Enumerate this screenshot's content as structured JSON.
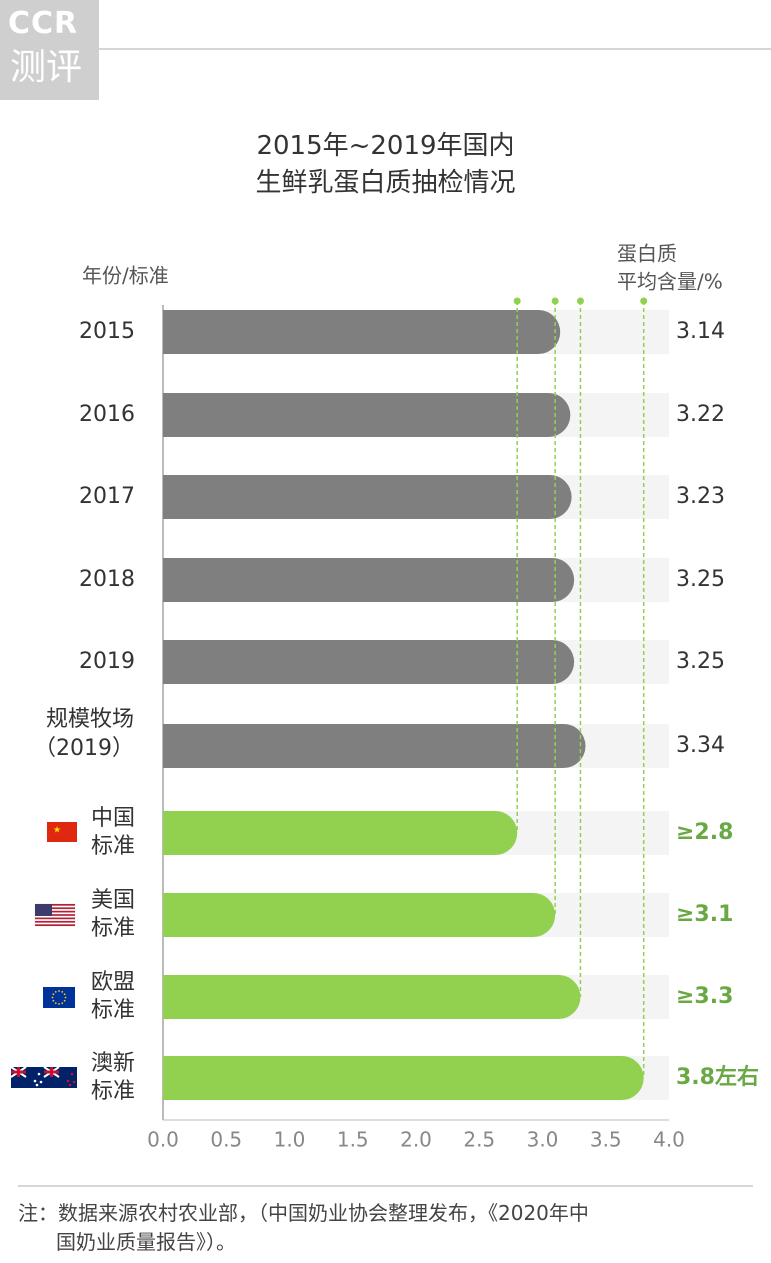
{
  "logo": {
    "line1": "CCR",
    "line2": "测评"
  },
  "title": {
    "line1": "2015年~2019年国内",
    "line2": "生鲜乳蛋白质抽检情况"
  },
  "footnote": {
    "line1": "注：数据来源农村农业部，（中国奶业协会整理发布，《2020年中",
    "line2": "国奶业质量报告》）。"
  },
  "colors": {
    "measured_bar": "#7f7f7f",
    "standard_bar": "#92d050",
    "standard_label": "#6aa843",
    "track": "#f4f4f4",
    "guide": "#92d050"
  },
  "chart_data": {
    "type": "bar",
    "orientation": "horizontal",
    "title": "2015年~2019年国内生鲜乳蛋白质抽检情况",
    "ylabel": "年份/标准",
    "value_label_lines": [
      "蛋白质",
      "平均含量/%"
    ],
    "xlim": [
      0,
      4.0
    ],
    "xticks": [
      "0.0",
      "0.5",
      "1.0",
      "1.5",
      "2.0",
      "2.5",
      "3.0",
      "3.5",
      "4.0"
    ],
    "categories": [
      {
        "label_lines": [
          "2015"
        ],
        "value": 3.14,
        "value_label": "3.14",
        "group": "measured"
      },
      {
        "label_lines": [
          "2016"
        ],
        "value": 3.22,
        "value_label": "3.22",
        "group": "measured"
      },
      {
        "label_lines": [
          "2017"
        ],
        "value": 3.23,
        "value_label": "3.23",
        "group": "measured"
      },
      {
        "label_lines": [
          "2018"
        ],
        "value": 3.25,
        "value_label": "3.25",
        "group": "measured"
      },
      {
        "label_lines": [
          "2019"
        ],
        "value": 3.25,
        "value_label": "3.25",
        "group": "measured"
      },
      {
        "label_lines": [
          "规模牧场",
          "（2019）"
        ],
        "value": 3.34,
        "value_label": "3.34",
        "group": "measured"
      },
      {
        "label_lines": [
          "中国",
          "标准"
        ],
        "value": 2.8,
        "value_label": "≥2.8",
        "group": "standard",
        "flag": "china-flag-icon"
      },
      {
        "label_lines": [
          "美国",
          "标准"
        ],
        "value": 3.1,
        "value_label": "≥3.1",
        "group": "standard",
        "flag": "usa-flag-icon"
      },
      {
        "label_lines": [
          "欧盟",
          "标准"
        ],
        "value": 3.3,
        "value_label": "≥3.3",
        "group": "standard",
        "flag": "eu-flag-icon"
      },
      {
        "label_lines": [
          "澳新",
          "标准"
        ],
        "value": 3.8,
        "value_label": "3.8左右",
        "group": "standard",
        "flag": "australia-nz-flag-icon"
      }
    ],
    "reference_lines": [
      2.8,
      3.1,
      3.3,
      3.8
    ]
  }
}
